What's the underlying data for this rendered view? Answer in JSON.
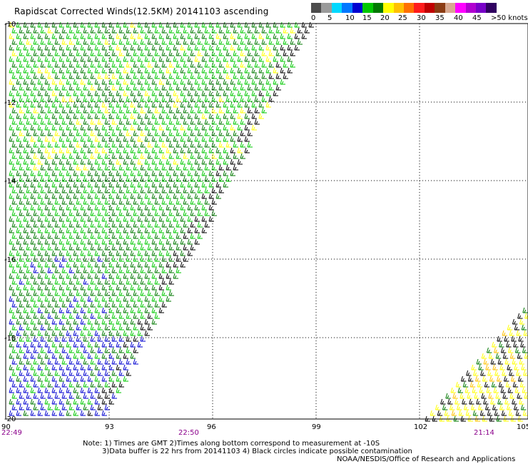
{
  "title": "Rapidscat Corrected Winds(12.5KM) 20141103 ascending",
  "legend": {
    "colors": [
      "#4d4d4d",
      "#9a9a9a",
      "#00d8ff",
      "#0078ff",
      "#0000d0",
      "#00c800",
      "#007800",
      "#ffff00",
      "#ffc000",
      "#ff7000",
      "#ff1c1c",
      "#c00000",
      "#8b3c14",
      "#d8a890",
      "#ff00ff",
      "#b000d0",
      "#7800c8",
      "#300060"
    ],
    "labels": [
      "0",
      "5",
      "10",
      "15",
      "20",
      "25",
      "30",
      "35",
      "40",
      "45",
      ">50 knots"
    ]
  },
  "map": {
    "lon_ticks": [
      "90",
      "93",
      "96",
      "99",
      "102",
      "105"
    ],
    "lat_ticks": [
      "-10",
      "-12",
      "-14",
      "-16",
      "-18",
      "-20"
    ],
    "time_labels": [
      "22:49",
      "22:50",
      "21:14"
    ],
    "time_color": "#8b008b"
  },
  "notes": {
    "line1": "Note: 1) Times are GMT 2)Times along bottom correspond to measurement at -10S",
    "line2": "3)Data buffer is 22 hrs from 20141103 4) Black circles indicate possible contamination",
    "line3": "NOAA/NESDIS/Office of Research and Applications"
  }
}
